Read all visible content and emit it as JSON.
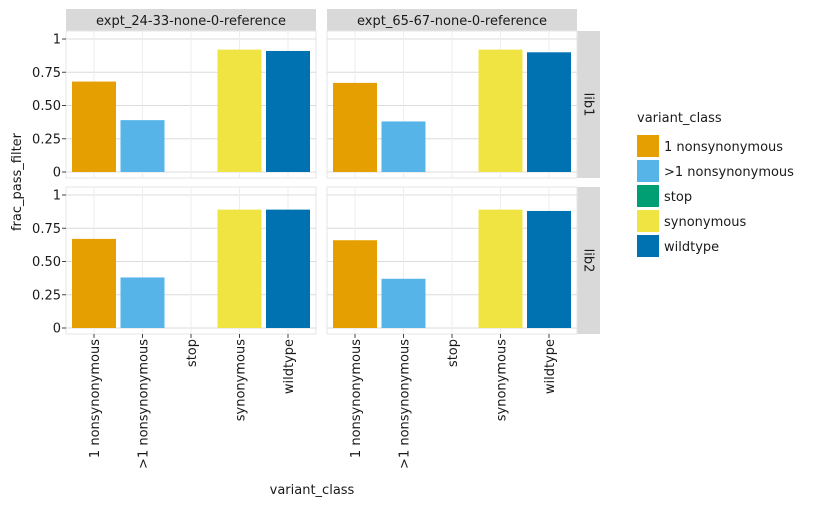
{
  "chart_data": {
    "type": "bar",
    "facet_cols": [
      "expt_24-33-none-0-reference",
      "expt_65-67-none-0-reference"
    ],
    "facet_rows": [
      "lib1",
      "lib2"
    ],
    "categories": [
      "1 nonsynonymous",
      ">1 nonsynonymous",
      "stop",
      "synonymous",
      "wildtype"
    ],
    "xlabel": "variant_class",
    "ylabel": "frac_pass_filter",
    "ylim": [
      0,
      1
    ],
    "yticks": [
      0,
      0.25,
      0.5,
      0.75,
      1
    ],
    "ytick_labels": [
      "0",
      "0.25",
      "0.50",
      "0.75",
      "1"
    ],
    "grid": true,
    "legend": {
      "title": "variant_class",
      "position": "right",
      "items": [
        {
          "label": "1 nonsynonymous",
          "color": "#E69F00"
        },
        {
          "label": ">1 nonsynonymous",
          "color": "#56B4E9"
        },
        {
          "label": "stop",
          "color": "#009E73"
        },
        {
          "label": "synonymous",
          "color": "#F0E442"
        },
        {
          "label": "wildtype",
          "color": "#0072B2"
        }
      ]
    },
    "panels": [
      {
        "col": 0,
        "row": 0,
        "values": [
          0.68,
          0.39,
          0,
          0.92,
          0.91
        ]
      },
      {
        "col": 1,
        "row": 0,
        "values": [
          0.67,
          0.38,
          0,
          0.92,
          0.9
        ]
      },
      {
        "col": 0,
        "row": 1,
        "values": [
          0.67,
          0.38,
          0,
          0.89,
          0.89
        ]
      },
      {
        "col": 1,
        "row": 1,
        "values": [
          0.66,
          0.37,
          0,
          0.89,
          0.88
        ]
      }
    ]
  }
}
